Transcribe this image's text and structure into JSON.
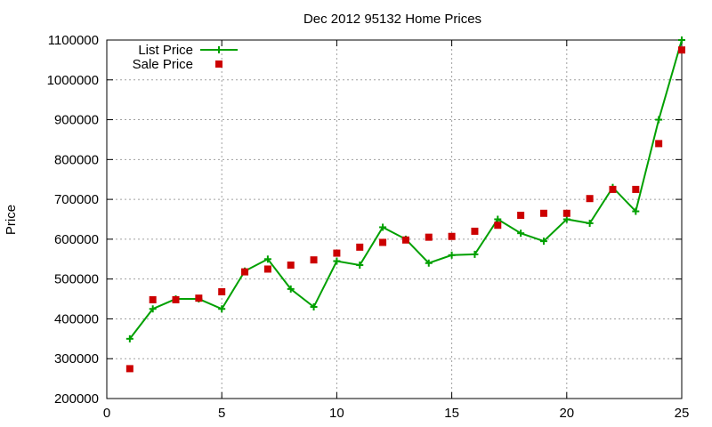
{
  "chart_data": {
    "type": "line",
    "title": "Dec 2012 95132 Home Prices",
    "xlabel": "",
    "ylabel": "Price",
    "xlim": [
      0,
      25
    ],
    "ylim": [
      200000,
      1100000
    ],
    "x_ticks": [
      0,
      5,
      10,
      15,
      20,
      25
    ],
    "y_ticks": [
      200000,
      300000,
      400000,
      500000,
      600000,
      700000,
      800000,
      900000,
      1000000,
      1100000
    ],
    "grid": true,
    "legend_position": "top-left",
    "series": [
      {
        "name": "List Price",
        "style": "line+cross",
        "color": "#00a000",
        "x": [
          1,
          2,
          3,
          4,
          5,
          6,
          7,
          8,
          9,
          10,
          11,
          12,
          13,
          14,
          15,
          16,
          17,
          18,
          19,
          20,
          21,
          22,
          23,
          24,
          25
        ],
        "y": [
          350000,
          425000,
          450000,
          450000,
          425000,
          520000,
          550000,
          475000,
          430000,
          545000,
          535000,
          630000,
          600000,
          540000,
          560000,
          562000,
          650000,
          615000,
          595000,
          650000,
          640000,
          730000,
          670000,
          900000,
          1100000
        ]
      },
      {
        "name": "Sale Price",
        "style": "square-markers",
        "color": "#cc0000",
        "x": [
          1,
          2,
          3,
          4,
          5,
          6,
          7,
          8,
          9,
          10,
          11,
          12,
          13,
          14,
          15,
          16,
          17,
          18,
          19,
          20,
          21,
          22,
          23,
          24,
          25
        ],
        "y": [
          275000,
          448000,
          448000,
          452000,
          468000,
          518000,
          525000,
          535000,
          548000,
          565000,
          580000,
          592000,
          598000,
          605000,
          607000,
          620000,
          635000,
          660000,
          665000,
          665000,
          702000,
          725000,
          725000,
          840000,
          1075000
        ]
      }
    ]
  }
}
